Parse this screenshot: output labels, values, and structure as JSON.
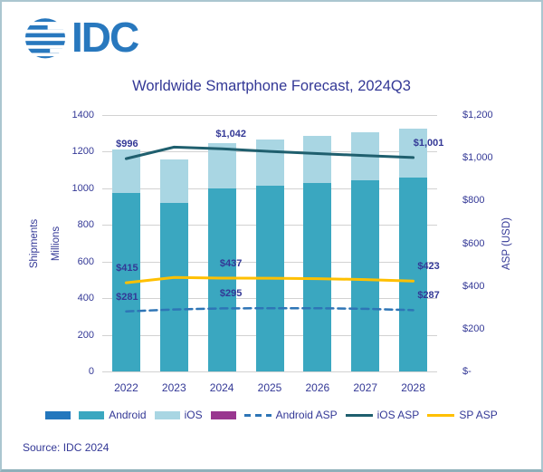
{
  "logo": {
    "text": "IDC"
  },
  "source": "Source: IDC 2024",
  "colors": {
    "navy_text": "#333896",
    "grid": "#d2d2d2",
    "logo_blue": "#2878be",
    "border": "#abc6d0"
  },
  "chart_data": {
    "type": "bar+line",
    "title": "Worldwide Smartphone Forecast, 2024Q3",
    "stacked": true,
    "grid": true,
    "legend_position": "bottom",
    "categories": [
      "2022",
      "2023",
      "2024",
      "2025",
      "2026",
      "2027",
      "2028"
    ],
    "bar_series": [
      {
        "name": "Android",
        "color": "#3aa7c0",
        "axis": "left",
        "values": [
          975,
          920,
          1000,
          1015,
          1030,
          1045,
          1060
        ]
      },
      {
        "name": "iOS",
        "color": "#a9d6e3",
        "axis": "left",
        "values": [
          235,
          240,
          245,
          250,
          255,
          260,
          265
        ]
      }
    ],
    "line_series": [
      {
        "name": "Android ASP",
        "color": "#2e75b6",
        "dash": true,
        "axis": "right",
        "values": [
          281,
          290,
          295,
          296,
          296,
          293,
          287
        ],
        "point_labels": [
          {
            "index": 0,
            "text": "$281"
          },
          {
            "index": 2,
            "text": "$295"
          },
          {
            "index": 6,
            "text": "$287"
          }
        ]
      },
      {
        "name": "iOS ASP",
        "color": "#1f5f6e",
        "dash": false,
        "axis": "right",
        "values": [
          996,
          1050,
          1042,
          1030,
          1020,
          1010,
          1001
        ],
        "point_labels": [
          {
            "index": 0,
            "text": "$996"
          },
          {
            "index": 2,
            "text": "$1,042"
          },
          {
            "index": 6,
            "text": "$1,001"
          }
        ]
      },
      {
        "name": "SP ASP",
        "color": "#ffc000",
        "dash": false,
        "axis": "right",
        "values": [
          415,
          440,
          437,
          436,
          434,
          430,
          423
        ],
        "point_labels": [
          {
            "index": 0,
            "text": "$415"
          },
          {
            "index": 2,
            "text": "$437"
          },
          {
            "index": 6,
            "text": "$423"
          }
        ]
      }
    ],
    "left_axis": {
      "label1": "Shipments",
      "label2": "Millions",
      "min": 0,
      "max": 1400,
      "ticks": [
        "1400",
        "1200",
        "1000",
        "800",
        "600",
        "400",
        "200",
        "0"
      ]
    },
    "right_axis": {
      "label": "ASP (USD)",
      "min": 0,
      "max": 1200,
      "ticks": [
        "$1,200",
        "$1,000",
        "$800",
        "$600",
        "$400",
        "$200",
        "$-"
      ]
    },
    "legend": [
      {
        "swatch": "bar",
        "color": "#2377bd",
        "label": ""
      },
      {
        "swatch": "bar",
        "color": "#3aa7c0",
        "label": "Android"
      },
      {
        "swatch": "bar",
        "color": "#a9d6e3",
        "label": "iOS"
      },
      {
        "swatch": "bar",
        "color": "#99368f",
        "label": ""
      },
      {
        "swatch": "dashed-line",
        "color": "#2e75b6",
        "label": "Android ASP"
      },
      {
        "swatch": "line",
        "color": "#1f5f6e",
        "label": "iOS ASP"
      },
      {
        "swatch": "line",
        "color": "#ffc000",
        "label": "SP ASP"
      }
    ]
  }
}
